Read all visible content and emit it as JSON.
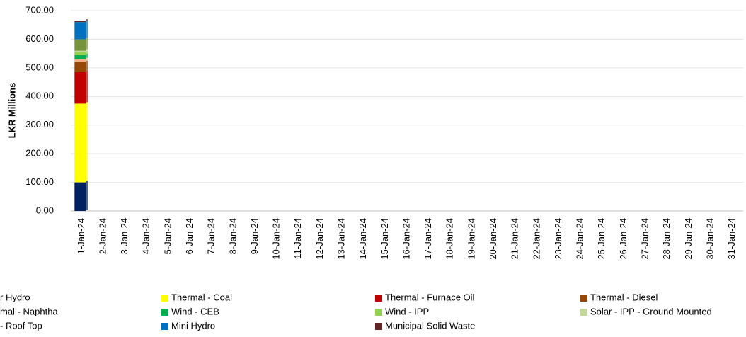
{
  "chart_data": {
    "type": "stacked_bar",
    "ylabel": "LKR Millions",
    "categories": [
      "1-Jan-24",
      "2-Jan-24",
      "3-Jan-24",
      "4-Jan-24",
      "5-Jan-24",
      "6-Jan-24",
      "7-Jan-24",
      "8-Jan-24",
      "9-Jan-24",
      "10-Jan-24",
      "11-Jan-24",
      "12-Jan-24",
      "13-Jan-24",
      "14-Jan-24",
      "15-Jan-24",
      "16-Jan-24",
      "17-Jan-24",
      "18-Jan-24",
      "19-Jan-24",
      "20-Jan-24",
      "21-Jan-24",
      "22-Jan-24",
      "23-Jan-24",
      "24-Jan-24",
      "25-Jan-24",
      "26-Jan-24",
      "27-Jan-24",
      "28-Jan-24",
      "29-Jan-24",
      "30-Jan-24",
      "31-Jan-24"
    ],
    "series": [
      {
        "name": "r Hydro",
        "color": "#002060",
        "values": [
          100,
          null,
          null,
          null,
          null,
          null,
          null,
          null,
          null,
          null,
          null,
          null,
          null,
          null,
          null,
          null,
          null,
          null,
          null,
          null,
          null,
          null,
          null,
          null,
          null,
          null,
          null,
          null,
          null,
          null,
          null
        ]
      },
      {
        "name": "Thermal - Coal",
        "color": "#ffff00",
        "values": [
          275,
          null,
          null,
          null,
          null,
          null,
          null,
          null,
          null,
          null,
          null,
          null,
          null,
          null,
          null,
          null,
          null,
          null,
          null,
          null,
          null,
          null,
          null,
          null,
          null,
          null,
          null,
          null,
          null,
          null,
          null
        ]
      },
      {
        "name": "Thermal - Furnace Oil",
        "color": "#c00000",
        "values": [
          110,
          null,
          null,
          null,
          null,
          null,
          null,
          null,
          null,
          null,
          null,
          null,
          null,
          null,
          null,
          null,
          null,
          null,
          null,
          null,
          null,
          null,
          null,
          null,
          null,
          null,
          null,
          null,
          null,
          null,
          null
        ]
      },
      {
        "name": "Thermal - Diesel",
        "color": "#974706",
        "values": [
          35,
          null,
          null,
          null,
          null,
          null,
          null,
          null,
          null,
          null,
          null,
          null,
          null,
          null,
          null,
          null,
          null,
          null,
          null,
          null,
          null,
          null,
          null,
          null,
          null,
          null,
          null,
          null,
          null,
          null,
          null
        ]
      },
      {
        "name": "mal - Naphtha",
        "color": "#f4b183",
        "values": [
          10,
          null,
          null,
          null,
          null,
          null,
          null,
          null,
          null,
          null,
          null,
          null,
          null,
          null,
          null,
          null,
          null,
          null,
          null,
          null,
          null,
          null,
          null,
          null,
          null,
          null,
          null,
          null,
          null,
          null,
          null
        ]
      },
      {
        "name": "Wind - CEB",
        "color": "#00b050",
        "values": [
          15,
          null,
          null,
          null,
          null,
          null,
          null,
          null,
          null,
          null,
          null,
          null,
          null,
          null,
          null,
          null,
          null,
          null,
          null,
          null,
          null,
          null,
          null,
          null,
          null,
          null,
          null,
          null,
          null,
          null,
          null
        ]
      },
      {
        "name": "Wind - IPP",
        "color": "#92d050",
        "values": [
          10,
          null,
          null,
          null,
          null,
          null,
          null,
          null,
          null,
          null,
          null,
          null,
          null,
          null,
          null,
          null,
          null,
          null,
          null,
          null,
          null,
          null,
          null,
          null,
          null,
          null,
          null,
          null,
          null,
          null,
          null
        ]
      },
      {
        "name": "Solar - IPP - Ground Mounted",
        "color": "#c4d79b",
        "values": [
          5,
          null,
          null,
          null,
          null,
          null,
          null,
          null,
          null,
          null,
          null,
          null,
          null,
          null,
          null,
          null,
          null,
          null,
          null,
          null,
          null,
          null,
          null,
          null,
          null,
          null,
          null,
          null,
          null,
          null,
          null
        ]
      },
      {
        "name": "- Roof Top",
        "color": "#77933c",
        "values": [
          40,
          null,
          null,
          null,
          null,
          null,
          null,
          null,
          null,
          null,
          null,
          null,
          null,
          null,
          null,
          null,
          null,
          null,
          null,
          null,
          null,
          null,
          null,
          null,
          null,
          null,
          null,
          null,
          null,
          null,
          null
        ]
      },
      {
        "name": "Mini Hydro",
        "color": "#0070c0",
        "values": [
          60,
          null,
          null,
          null,
          null,
          null,
          null,
          null,
          null,
          null,
          null,
          null,
          null,
          null,
          null,
          null,
          null,
          null,
          null,
          null,
          null,
          null,
          null,
          null,
          null,
          null,
          null,
          null,
          null,
          null,
          null
        ]
      },
      {
        "name": "Municipal Solid Waste",
        "color": "#632523",
        "values": [
          5,
          null,
          null,
          null,
          null,
          null,
          null,
          null,
          null,
          null,
          null,
          null,
          null,
          null,
          null,
          null,
          null,
          null,
          null,
          null,
          null,
          null,
          null,
          null,
          null,
          null,
          null,
          null,
          null,
          null,
          null
        ]
      }
    ],
    "ylim": [
      0,
      700
    ],
    "yticks": [
      {
        "value": 0,
        "label": "0.00"
      },
      {
        "value": 100,
        "label": "100.00"
      },
      {
        "value": 200,
        "label": "200.00"
      },
      {
        "value": 300,
        "label": "300.00"
      },
      {
        "value": 400,
        "label": "400.00"
      },
      {
        "value": 500,
        "label": "500.00"
      },
      {
        "value": 600,
        "label": "600.00"
      },
      {
        "value": 700,
        "label": "700.00"
      }
    ],
    "grid": true
  }
}
